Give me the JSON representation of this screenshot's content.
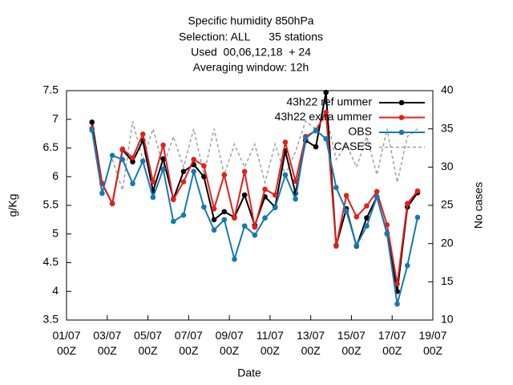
{
  "chart_data": {
    "type": "line",
    "title": [
      "Specific humidity 850hPa",
      "Selection: ALL      35 stations",
      "Used  00,06,12,18  + 24",
      "Averaging window: 12h"
    ],
    "x_label": "Date",
    "y_label": "g/Kg",
    "y2_label": "No cases",
    "x": [
      "02/07 06Z",
      "02/07 18Z",
      "03/07 06Z",
      "03/07 18Z",
      "04/07 06Z",
      "04/07 18Z",
      "05/07 06Z",
      "05/07 18Z",
      "06/07 06Z",
      "06/07 18Z",
      "07/07 06Z",
      "07/07 18Z",
      "08/07 06Z",
      "08/07 18Z",
      "09/07 06Z",
      "09/07 18Z",
      "10/07 06Z",
      "10/07 18Z",
      "11/07 06Z",
      "11/07 18Z",
      "12/07 06Z",
      "12/07 18Z",
      "13/07 06Z",
      "13/07 18Z",
      "14/07 06Z",
      "14/07 18Z",
      "15/07 06Z",
      "15/07 18Z",
      "16/07 06Z",
      "16/07 18Z",
      "17/07 06Z",
      "17/07 18Z",
      "18/07 06Z"
    ],
    "xlim": [
      "01/07 00Z",
      "19/07 00Z"
    ],
    "xticks": [
      "01/07 00Z",
      "03/07 00Z",
      "05/07 00Z",
      "07/07 00Z",
      "09/07 00Z",
      "11/07 00Z",
      "13/07 00Z",
      "15/07 00Z",
      "17/07 00Z",
      "19/07 00Z"
    ],
    "ylim": [
      3.5,
      7.5
    ],
    "yticks": [
      3.5,
      4,
      4.5,
      5,
      5.5,
      6,
      6.5,
      7,
      7.5
    ],
    "y2lim": [
      10,
      40
    ],
    "y2ticks": [
      10,
      15,
      20,
      25,
      30,
      35,
      40
    ],
    "legend": "upper right",
    "series": [
      {
        "name": "43h22 ref ummer",
        "color": "#000000",
        "marker": true,
        "dashed": false,
        "values": [
          6.95,
          5.88,
          5.53,
          6.47,
          6.26,
          6.63,
          5.75,
          6.31,
          5.61,
          6.09,
          6.21,
          6.0,
          5.25,
          5.39,
          5.29,
          5.68,
          5.15,
          5.65,
          5.47,
          6.45,
          5.71,
          6.63,
          6.52,
          7.47,
          4.8,
          5.44,
          4.79,
          5.28,
          5.65,
          5.01,
          4.0,
          5.47,
          5.72
        ]
      },
      {
        "name": "43h22 extra ummer",
        "color": "#e3201c",
        "marker": true,
        "dashed": false,
        "values": [
          6.84,
          5.88,
          5.53,
          6.48,
          6.33,
          6.74,
          5.91,
          6.55,
          5.6,
          5.91,
          6.3,
          6.19,
          5.44,
          6.03,
          5.28,
          6.09,
          5.12,
          5.78,
          5.68,
          6.6,
          5.92,
          6.7,
          6.8,
          7.12,
          4.79,
          5.67,
          5.3,
          5.49,
          5.74,
          5.16,
          4.13,
          5.53,
          5.75
        ]
      },
      {
        "name": "OBS",
        "color": "#1479b3",
        "marker": true,
        "dashed": false,
        "values": [
          6.81,
          5.71,
          6.37,
          6.3,
          5.88,
          6.27,
          5.64,
          6.13,
          5.22,
          5.33,
          6.09,
          5.47,
          5.07,
          5.25,
          4.56,
          5.14,
          4.98,
          5.28,
          5.46,
          6.03,
          5.61,
          6.67,
          6.81,
          6.66,
          5.81,
          5.4,
          4.8,
          5.14,
          5.65,
          5.0,
          3.78,
          4.45,
          5.29
        ]
      },
      {
        "name": "CASES",
        "color": "#a0a0a0",
        "marker": false,
        "dashed": true,
        "axis": "y2",
        "values": [
          null,
          null,
          31,
          27,
          36,
          31,
          35,
          30,
          34,
          30,
          35,
          29,
          35,
          29,
          33,
          30,
          33,
          28,
          33,
          29,
          32,
          36,
          35,
          37,
          31,
          33,
          30,
          34,
          29,
          35,
          28,
          34,
          35
        ]
      }
    ]
  }
}
